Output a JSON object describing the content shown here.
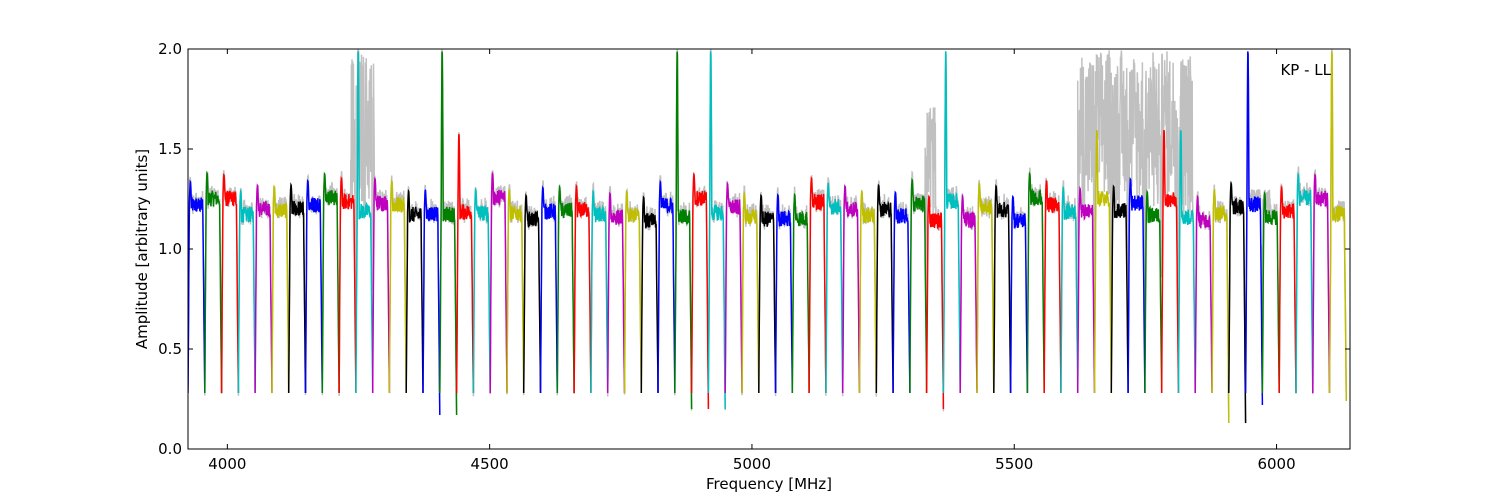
{
  "chart_data": {
    "type": "line",
    "annotation": "KP - LL",
    "xlabel": "Frequency [MHz]",
    "ylabel": "Amplitude [arbitrary units]",
    "xlim": [
      3925,
      6140
    ],
    "ylim": [
      0.0,
      2.0
    ],
    "xticks": [
      4000,
      4500,
      5000,
      5500,
      6000
    ],
    "yticks": [
      0.0,
      0.5,
      1.0,
      1.5,
      2.0
    ],
    "xtick_labels": [
      "4000",
      "4500",
      "5000",
      "5500",
      "6000"
    ],
    "ytick_labels": [
      "0.0",
      "0.5",
      "1.0",
      "1.5",
      "2.0"
    ],
    "grid": false,
    "legend": "none",
    "color_cycle": [
      "#0000ff",
      "#008000",
      "#ff0000",
      "#00bfbf",
      "#bf00bf",
      "#bfbf00",
      "#000000"
    ],
    "background_color": "#c0c0c0",
    "channel_width_mhz": 32,
    "channel_start_mhz": 3925,
    "channel_count": 69,
    "typical_level": 1.2,
    "dip_level": 0.28,
    "channel_edge_peaks": [
      {
        "x": 3950,
        "peak": 1.38
      },
      {
        "x": 4245,
        "peak": 2.0
      },
      {
        "x": 4405,
        "peak": 2.0
      },
      {
        "x": 4430,
        "peak": 1.58
      },
      {
        "x": 4870,
        "peak": 2.0
      },
      {
        "x": 4910,
        "peak": 2.0
      },
      {
        "x": 5360,
        "peak": 2.0
      },
      {
        "x": 5375,
        "peak": 1.55
      },
      {
        "x": 5650,
        "peak": 1.6
      },
      {
        "x": 5800,
        "peak": 1.6
      },
      {
        "x": 5935,
        "peak": 2.0
      },
      {
        "x": 6115,
        "peak": 2.0
      }
    ],
    "background_bursts": [
      {
        "from": 4235,
        "to": 4280,
        "peak": 2.0
      },
      {
        "from": 5330,
        "to": 5350,
        "peak": 1.75
      },
      {
        "from": 5620,
        "to": 5840,
        "peak": 2.0
      },
      {
        "from": 5950,
        "to": 5990,
        "peak": 1.3
      }
    ],
    "deep_dips": [
      {
        "x": 4425,
        "min": 0.17
      },
      {
        "x": 4880,
        "min": 0.2
      },
      {
        "x": 4930,
        "min": 0.2
      },
      {
        "x": 5370,
        "min": 0.2
      },
      {
        "x": 5928,
        "min": 0.13
      },
      {
        "x": 5960,
        "min": 0.22
      },
      {
        "x": 6130,
        "min": 0.24
      }
    ]
  }
}
